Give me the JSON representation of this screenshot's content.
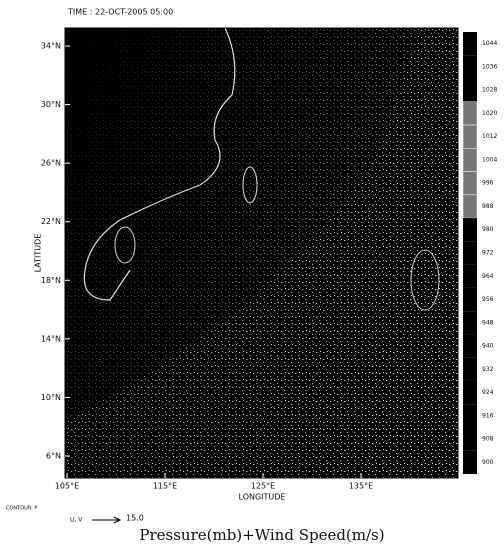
{
  "time_label": "TIME : 22-OCT-2005 05:00",
  "x_axis": {
    "label": "LONGITUDE",
    "ticks": [
      "105°E",
      "115°E",
      "125°E",
      "135°E"
    ]
  },
  "y_axis": {
    "label": "LATITUDE",
    "ticks": [
      "34°N",
      "30°N",
      "26°N",
      "22°N",
      "18°N",
      "14°N",
      "10°N",
      "6°N"
    ]
  },
  "colorbar": {
    "labels": [
      1044,
      1036,
      1028,
      1020,
      1012,
      1004,
      996,
      988,
      980,
      972,
      964,
      956,
      948,
      940,
      932,
      924,
      916,
      908,
      900
    ]
  },
  "contour_label": "CONTOUR: P",
  "vector_legend": {
    "label": "U, V",
    "value": "15.0"
  },
  "caption": "Pressure(mb)+Wind Speed(m/s)"
}
